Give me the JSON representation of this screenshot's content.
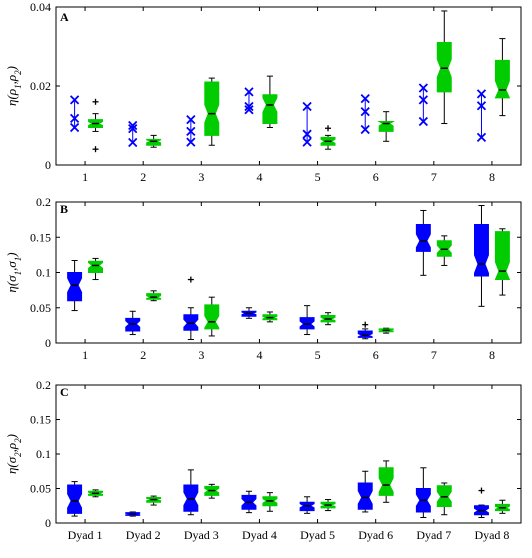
{
  "colors": {
    "blue": "#0000ff",
    "green": "#00cc00",
    "median": "#000000",
    "axis": "#000000"
  },
  "chart_data": [
    {
      "id": "A",
      "type": "box",
      "panel_label": "A",
      "ylabel_html": [
        "η(",
        "ρ",
        "1",
        ",",
        "ρ",
        "2",
        ")"
      ],
      "ylim": [
        0,
        0.04
      ],
      "yticks": [
        0,
        0.02,
        0.04
      ],
      "ytick_labels": [
        "0",
        "0.02",
        "0.04"
      ],
      "categories": [
        "1",
        "2",
        "3",
        "4",
        "5",
        "6",
        "7",
        "8"
      ],
      "series": [
        {
          "color": "blue",
          "render": "points",
          "values": [
            [
              0.0095,
              0.0118,
              0.0165
            ],
            [
              0.0057,
              0.0092,
              0.01
            ],
            [
              0.0058,
              0.0085,
              0.0115
            ],
            [
              0.014,
              0.0148,
              0.0185
            ],
            [
              0.0058,
              0.0078,
              0.0148
            ],
            [
              0.009,
              0.0135,
              0.0168
            ],
            [
              0.011,
              0.0165,
              0.0195
            ],
            [
              0.007,
              0.015,
              0.018
            ]
          ]
        },
        {
          "color": "green",
          "render": "box",
          "boxes": [
            {
              "min": 0.0085,
              "q1": 0.0095,
              "median": 0.0105,
              "q3": 0.0115,
              "max": 0.013,
              "outliers": [
                0.004,
                0.016
              ]
            },
            {
              "min": 0.0045,
              "q1": 0.005,
              "median": 0.006,
              "q3": 0.0065,
              "max": 0.0075,
              "outliers": []
            },
            {
              "min": 0.005,
              "q1": 0.0075,
              "median": 0.013,
              "q3": 0.021,
              "max": 0.022,
              "outliers": []
            },
            {
              "min": 0.0095,
              "q1": 0.0105,
              "median": 0.0152,
              "q3": 0.0178,
              "max": 0.0225,
              "outliers": []
            },
            {
              "min": 0.004,
              "q1": 0.005,
              "median": 0.006,
              "q3": 0.007,
              "max": 0.0075,
              "outliers": [
                0.0093
              ]
            },
            {
              "min": 0.006,
              "q1": 0.0085,
              "median": 0.0105,
              "q3": 0.011,
              "max": 0.0135,
              "outliers": []
            },
            {
              "min": 0.0105,
              "q1": 0.0185,
              "median": 0.0245,
              "q3": 0.031,
              "max": 0.039,
              "outliers": []
            },
            {
              "min": 0.0125,
              "q1": 0.017,
              "median": 0.019,
              "q3": 0.0265,
              "max": 0.032,
              "outliers": []
            }
          ]
        }
      ]
    },
    {
      "id": "B",
      "type": "box",
      "panel_label": "B",
      "ylabel_html": [
        "η(",
        "σ",
        "1",
        ",",
        "σ",
        "1",
        ")"
      ],
      "ylim": [
        0,
        0.2
      ],
      "yticks": [
        0,
        0.05,
        0.1,
        0.15,
        0.2
      ],
      "ytick_labels": [
        "0",
        "0.05",
        "0.1",
        "0.15",
        "0.2"
      ],
      "categories": [
        "1",
        "2",
        "3",
        "4",
        "5",
        "6",
        "7",
        "8"
      ],
      "series": [
        {
          "color": "blue",
          "render": "box",
          "boxes": [
            {
              "min": 0.046,
              "q1": 0.06,
              "median": 0.082,
              "q3": 0.1,
              "max": 0.117,
              "outliers": []
            },
            {
              "min": 0.012,
              "q1": 0.017,
              "median": 0.027,
              "q3": 0.035,
              "max": 0.045,
              "outliers": []
            },
            {
              "min": 0.005,
              "q1": 0.018,
              "median": 0.028,
              "q3": 0.04,
              "max": 0.05,
              "outliers": [
                0.09
              ]
            },
            {
              "min": 0.035,
              "q1": 0.038,
              "median": 0.042,
              "q3": 0.045,
              "max": 0.05,
              "outliers": []
            },
            {
              "min": 0.012,
              "q1": 0.02,
              "median": 0.027,
              "q3": 0.036,
              "max": 0.053,
              "outliers": []
            },
            {
              "min": 0.006,
              "q1": 0.008,
              "median": 0.011,
              "q3": 0.017,
              "max": 0.02,
              "outliers": [
                0.026
              ]
            },
            {
              "min": 0.096,
              "q1": 0.13,
              "median": 0.145,
              "q3": 0.168,
              "max": 0.188,
              "outliers": []
            },
            {
              "min": 0.052,
              "q1": 0.095,
              "median": 0.112,
              "q3": 0.168,
              "max": 0.195,
              "outliers": []
            }
          ]
        },
        {
          "color": "green",
          "render": "box",
          "boxes": [
            {
              "min": 0.09,
              "q1": 0.1,
              "median": 0.11,
              "q3": 0.116,
              "max": 0.12,
              "outliers": []
            },
            {
              "min": 0.06,
              "q1": 0.062,
              "median": 0.065,
              "q3": 0.07,
              "max": 0.074,
              "outliers": []
            },
            {
              "min": 0.01,
              "q1": 0.02,
              "median": 0.03,
              "q3": 0.054,
              "max": 0.065,
              "outliers": []
            },
            {
              "min": 0.03,
              "q1": 0.033,
              "median": 0.036,
              "q3": 0.04,
              "max": 0.044,
              "outliers": []
            },
            {
              "min": 0.026,
              "q1": 0.03,
              "median": 0.034,
              "q3": 0.039,
              "max": 0.043,
              "outliers": []
            },
            {
              "min": 0.014,
              "q1": 0.016,
              "median": 0.018,
              "q3": 0.02,
              "max": 0.021,
              "outliers": []
            },
            {
              "min": 0.11,
              "q1": 0.123,
              "median": 0.133,
              "q3": 0.145,
              "max": 0.152,
              "outliers": []
            },
            {
              "min": 0.068,
              "q1": 0.09,
              "median": 0.102,
              "q3": 0.158,
              "max": 0.162,
              "outliers": []
            }
          ]
        }
      ]
    },
    {
      "id": "C",
      "type": "box",
      "panel_label": "C",
      "ylabel_html": [
        "η(",
        "σ",
        "2",
        ",",
        "ρ",
        "2",
        ")"
      ],
      "ylim": [
        0,
        0.2
      ],
      "yticks": [
        0,
        0.05,
        0.1,
        0.15,
        0.2
      ],
      "ytick_labels": [
        "0",
        "0.05",
        "0.1",
        "0.15",
        "0.2"
      ],
      "categories": [
        "Dyad 1",
        "Dyad 2",
        "Dyad 3",
        "Dyad 4",
        "Dyad 5",
        "Dyad 6",
        "Dyad 7",
        "Dyad 8"
      ],
      "series": [
        {
          "color": "blue",
          "render": "box",
          "boxes": [
            {
              "min": 0.01,
              "q1": 0.014,
              "median": 0.032,
              "q3": 0.055,
              "max": 0.06,
              "outliers": []
            },
            {
              "min": 0.01,
              "q1": 0.011,
              "median": 0.013,
              "q3": 0.015,
              "max": 0.016,
              "outliers": []
            },
            {
              "min": 0.012,
              "q1": 0.017,
              "median": 0.035,
              "q3": 0.055,
              "max": 0.077,
              "outliers": []
            },
            {
              "min": 0.015,
              "q1": 0.02,
              "median": 0.03,
              "q3": 0.04,
              "max": 0.046,
              "outliers": []
            },
            {
              "min": 0.014,
              "q1": 0.018,
              "median": 0.025,
              "q3": 0.03,
              "max": 0.038,
              "outliers": []
            },
            {
              "min": 0.016,
              "q1": 0.02,
              "median": 0.037,
              "q3": 0.058,
              "max": 0.075,
              "outliers": []
            },
            {
              "min": 0.008,
              "q1": 0.016,
              "median": 0.033,
              "q3": 0.05,
              "max": 0.08,
              "outliers": []
            },
            {
              "min": 0.008,
              "q1": 0.012,
              "median": 0.018,
              "q3": 0.025,
              "max": 0.026,
              "outliers": [
                0.047
              ]
            }
          ]
        },
        {
          "color": "green",
          "render": "box",
          "boxes": [
            {
              "min": 0.038,
              "q1": 0.04,
              "median": 0.043,
              "q3": 0.046,
              "max": 0.048,
              "outliers": []
            },
            {
              "min": 0.026,
              "q1": 0.03,
              "median": 0.034,
              "q3": 0.037,
              "max": 0.039,
              "outliers": []
            },
            {
              "min": 0.036,
              "q1": 0.04,
              "median": 0.047,
              "q3": 0.053,
              "max": 0.056,
              "outliers": []
            },
            {
              "min": 0.017,
              "q1": 0.025,
              "median": 0.032,
              "q3": 0.038,
              "max": 0.044,
              "outliers": []
            },
            {
              "min": 0.018,
              "q1": 0.022,
              "median": 0.026,
              "q3": 0.03,
              "max": 0.034,
              "outliers": []
            },
            {
              "min": 0.03,
              "q1": 0.04,
              "median": 0.055,
              "q3": 0.08,
              "max": 0.09,
              "outliers": []
            },
            {
              "min": 0.012,
              "q1": 0.024,
              "median": 0.038,
              "q3": 0.054,
              "max": 0.058,
              "outliers": []
            },
            {
              "min": 0.014,
              "q1": 0.018,
              "median": 0.022,
              "q3": 0.027,
              "max": 0.033,
              "outliers": []
            }
          ]
        }
      ]
    }
  ]
}
